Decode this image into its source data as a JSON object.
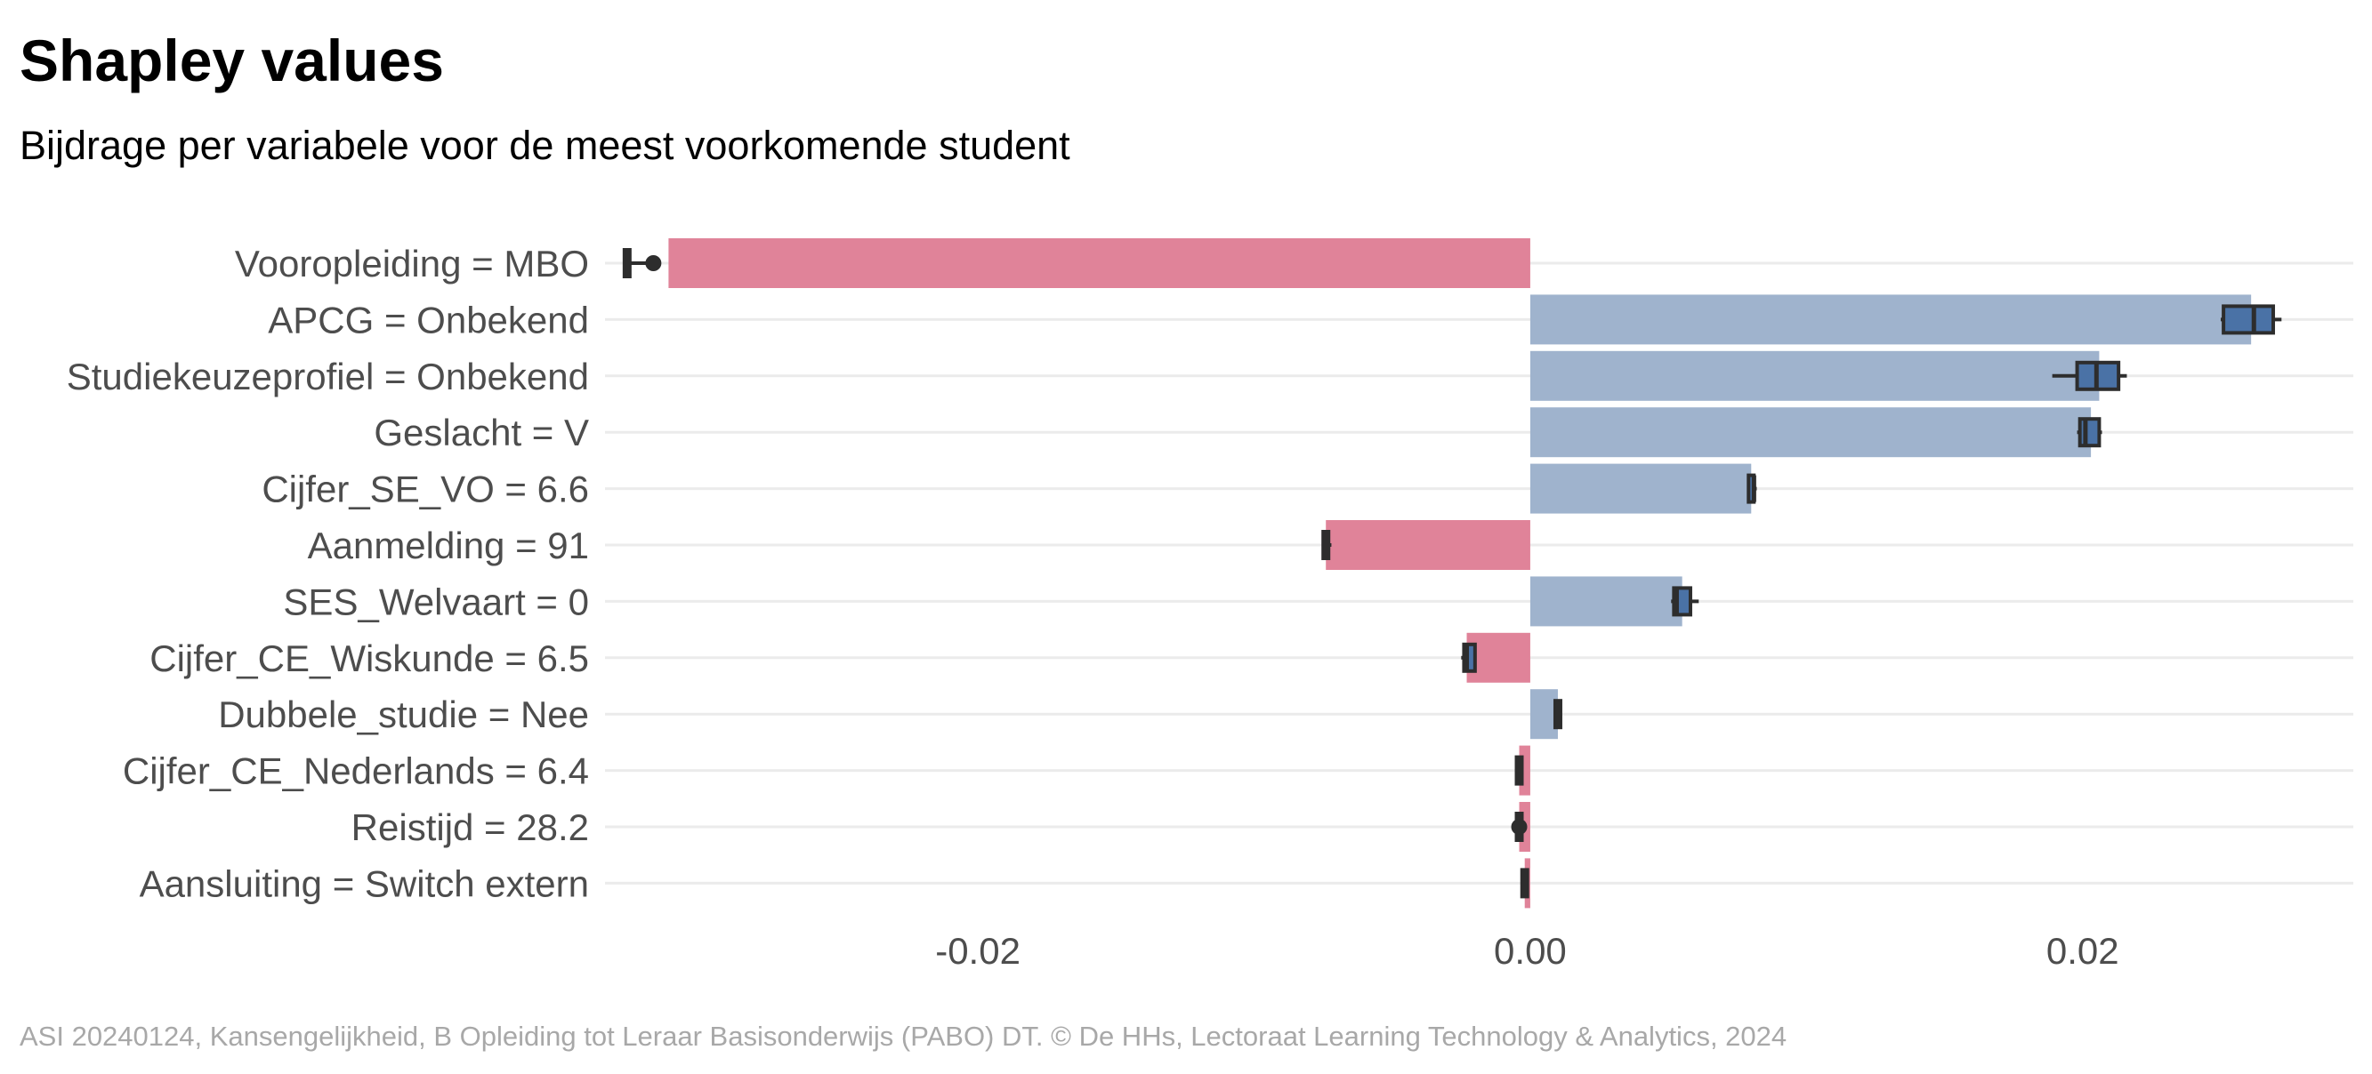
{
  "chart_data": {
    "type": "bar",
    "title": "Shapley values",
    "subtitle": "Bijdrage per variabele voor de meest voorkomende student",
    "caption": "ASI 20240124, Kansengelijkheid, B Opleiding tot Leraar Basisonderwijs (PABO) DT. © De HHs, Lectoraat Learning Technology & Analytics, 2024",
    "orientation": "horizontal",
    "xlim": [
      -0.0335,
      0.0298
    ],
    "x_ticks": [
      -0.02,
      0.0,
      0.02
    ],
    "x_tick_labels": [
      "-0.02",
      "0.00",
      "0.02"
    ],
    "grid": true,
    "colors": {
      "negative": "#e08399",
      "positive": "#9fb3cd",
      "box": "#4a72a6",
      "box_edge": "#2d2d2d"
    },
    "categories": [
      "Vooropleiding = MBO",
      "APCG = Onbekend",
      "Studiekeuzeprofiel = Onbekend",
      "Geslacht = V",
      "Cijfer_SE_VO = 6.6",
      "Aanmelding = 91",
      "SES_Welvaart = 0",
      "Cijfer_CE_Wiskunde = 6.5",
      "Dubbele_studie = Nee",
      "Cijfer_CE_Nederlands = 6.4",
      "Reistijd = 28.2",
      "Aansluiting = Switch extern"
    ],
    "values": [
      -0.0312,
      0.0261,
      0.0206,
      0.0203,
      0.008,
      -0.0074,
      0.0055,
      -0.0023,
      0.001,
      -0.0004,
      -0.0004,
      -0.0002
    ],
    "boxplots": [
      {
        "min": -0.0327,
        "q1": -0.0327,
        "median": -0.0327,
        "q3": -0.0327,
        "max": -0.032,
        "outlier": -0.0322
      },
      {
        "min": 0.025,
        "q1": 0.0251,
        "median": 0.0262,
        "q3": 0.0269,
        "max": 0.0272
      },
      {
        "min": 0.0189,
        "q1": 0.0198,
        "median": 0.0205,
        "q3": 0.0213,
        "max": 0.0216
      },
      {
        "min": 0.0198,
        "q1": 0.0199,
        "median": 0.0201,
        "q3": 0.0206,
        "max": 0.0207
      },
      {
        "min": 0.008,
        "q1": 0.008,
        "median": 0.0081,
        "q3": 0.0081,
        "max": 0.0082
      },
      {
        "min": -0.0075,
        "q1": -0.0074,
        "median": -0.0074,
        "q3": -0.0073,
        "max": -0.0072
      },
      {
        "min": 0.0051,
        "q1": 0.0052,
        "median": 0.0053,
        "q3": 0.0058,
        "max": 0.0061
      },
      {
        "min": -0.0025,
        "q1": -0.0024,
        "median": -0.0023,
        "q3": -0.002,
        "max": -0.002
      },
      {
        "min": 0.001,
        "q1": 0.001,
        "median": 0.001,
        "q3": 0.001,
        "max": 0.001
      },
      {
        "min": -0.0004,
        "q1": -0.0004,
        "median": -0.0004,
        "q3": -0.0004,
        "max": -0.0004
      },
      {
        "min": -0.0005,
        "q1": -0.0004,
        "median": -0.0004,
        "q3": -0.0003,
        "max": -0.0003,
        "outlier": -0.0004
      },
      {
        "min": -0.0002,
        "q1": -0.0002,
        "median": -0.0002,
        "q3": -0.0002,
        "max": -0.0002
      }
    ]
  }
}
